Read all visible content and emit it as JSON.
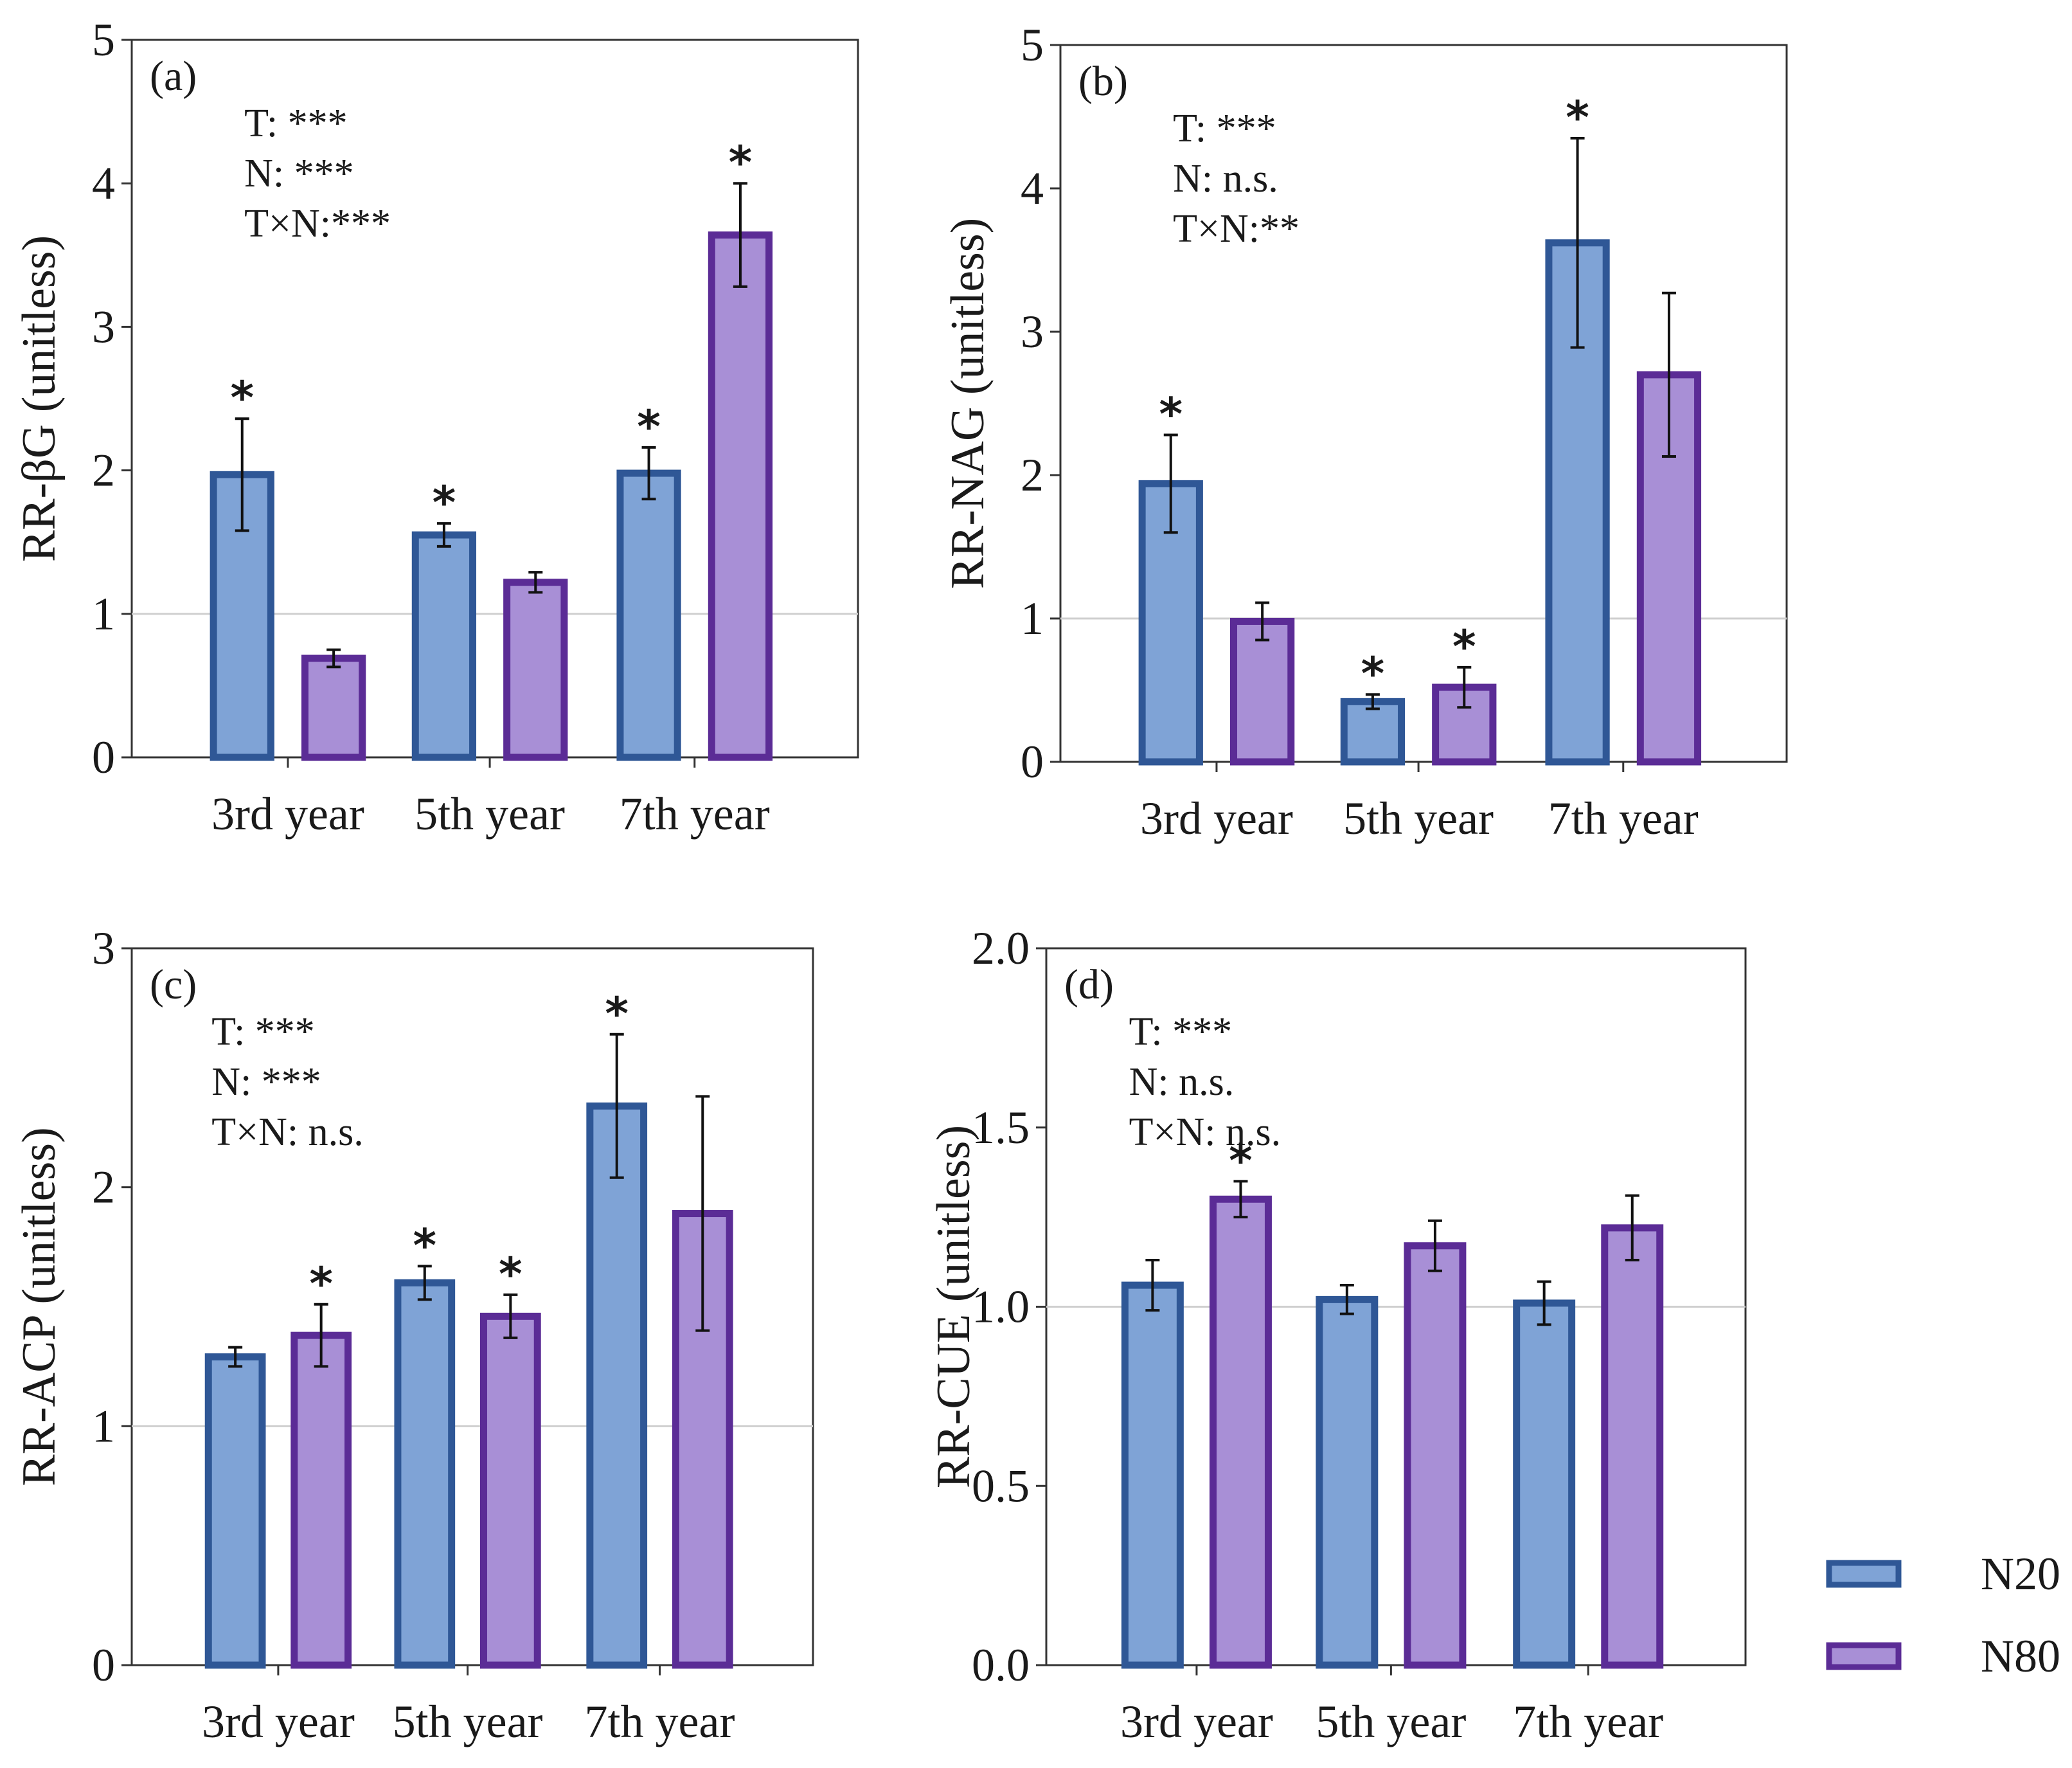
{
  "colors": {
    "n20_fill": "#7fa3d6",
    "n20_stroke": "#2f5796",
    "n80_fill": "#a88fd6",
    "n80_stroke": "#5b2c96",
    "refline": "#cfcfcf",
    "axis": "#333333"
  },
  "legend": [
    {
      "key": "n20",
      "label": "N20"
    },
    {
      "key": "n80",
      "label": "N80"
    }
  ],
  "chart_data": [
    {
      "id": "a",
      "type": "bar",
      "panel_label": "(a)",
      "ylabel": "RR-βG  (unitless)",
      "categories": [
        "3rd year",
        "5th year",
        "7th year"
      ],
      "ylim": [
        0,
        5
      ],
      "yticks": [
        0,
        1,
        2,
        3,
        4,
        5
      ],
      "ytick_labels": [
        "0",
        "1",
        "2",
        "3",
        "4",
        "5"
      ],
      "reference_line": 1,
      "stats": [
        "T: ***",
        "N: ***",
        "T×N:***"
      ],
      "series": [
        {
          "name": "N20",
          "key": "n20",
          "values": [
            1.97,
            1.55,
            1.98
          ],
          "errors": [
            0.39,
            0.08,
            0.18
          ],
          "sig": [
            "*",
            "*",
            "*"
          ]
        },
        {
          "name": "N80",
          "key": "n80",
          "values": [
            0.69,
            1.22,
            3.64
          ],
          "errors": [
            0.06,
            0.07,
            0.36
          ],
          "sig": [
            "",
            "",
            "*"
          ]
        }
      ]
    },
    {
      "id": "b",
      "type": "bar",
      "panel_label": "(b)",
      "ylabel": "RR-NAG  (unitless)",
      "categories": [
        "3rd year",
        "5th year",
        "7th year"
      ],
      "ylim": [
        0,
        5
      ],
      "yticks": [
        0,
        1,
        2,
        3,
        4,
        5
      ],
      "ytick_labels": [
        "0",
        "1",
        "2",
        "3",
        "4",
        "5"
      ],
      "reference_line": 1,
      "stats": [
        "T: ***",
        "N: n.s.",
        "T×N:**"
      ],
      "series": [
        {
          "name": "N20",
          "key": "n20",
          "values": [
            1.94,
            0.42,
            3.62
          ],
          "errors": [
            0.34,
            0.05,
            0.73
          ],
          "sig": [
            "*",
            "*",
            "*"
          ]
        },
        {
          "name": "N80",
          "key": "n80",
          "values": [
            0.98,
            0.52,
            2.7
          ],
          "errors": [
            0.13,
            0.14,
            0.57
          ],
          "sig": [
            "",
            "*",
            ""
          ]
        }
      ]
    },
    {
      "id": "c",
      "type": "bar",
      "panel_label": "(c)",
      "ylabel": "RR-ACP (unitless)",
      "categories": [
        "3rd year",
        "5th year",
        "7th year"
      ],
      "ylim": [
        0,
        3
      ],
      "yticks": [
        0,
        1,
        2,
        3
      ],
      "ytick_labels": [
        "0",
        "1",
        "2",
        "3"
      ],
      "reference_line": 1,
      "stats": [
        "T: ***",
        "N: ***",
        "T×N: n.s."
      ],
      "series": [
        {
          "name": "N20",
          "key": "n20",
          "values": [
            1.29,
            1.6,
            2.34
          ],
          "errors": [
            0.04,
            0.07,
            0.3
          ],
          "sig": [
            "",
            "*",
            "*"
          ]
        },
        {
          "name": "N80",
          "key": "n80",
          "values": [
            1.38,
            1.46,
            1.89
          ],
          "errors": [
            0.13,
            0.09,
            0.49
          ],
          "sig": [
            "*",
            "*",
            ""
          ]
        }
      ]
    },
    {
      "id": "d",
      "type": "bar",
      "panel_label": "(d)",
      "ylabel": "RR-CUE (unitless)",
      "categories": [
        "3rd year",
        "5th year",
        "7th year"
      ],
      "ylim": [
        0,
        2
      ],
      "yticks": [
        0,
        0.5,
        1.0,
        1.5,
        2.0
      ],
      "ytick_labels": [
        "0.0",
        "0.5",
        "1.0",
        "1.5",
        "2.0"
      ],
      "reference_line": 1,
      "stats": [
        "T: ***",
        "N: n.s.",
        "T×N: n.s."
      ],
      "series": [
        {
          "name": "N20",
          "key": "n20",
          "values": [
            1.06,
            1.02,
            1.01
          ],
          "errors": [
            0.07,
            0.04,
            0.06
          ],
          "sig": [
            "",
            "",
            ""
          ]
        },
        {
          "name": "N80",
          "key": "n80",
          "values": [
            1.3,
            1.17,
            1.22
          ],
          "errors": [
            0.05,
            0.07,
            0.09
          ],
          "sig": [
            "*",
            "",
            ""
          ]
        }
      ]
    }
  ]
}
